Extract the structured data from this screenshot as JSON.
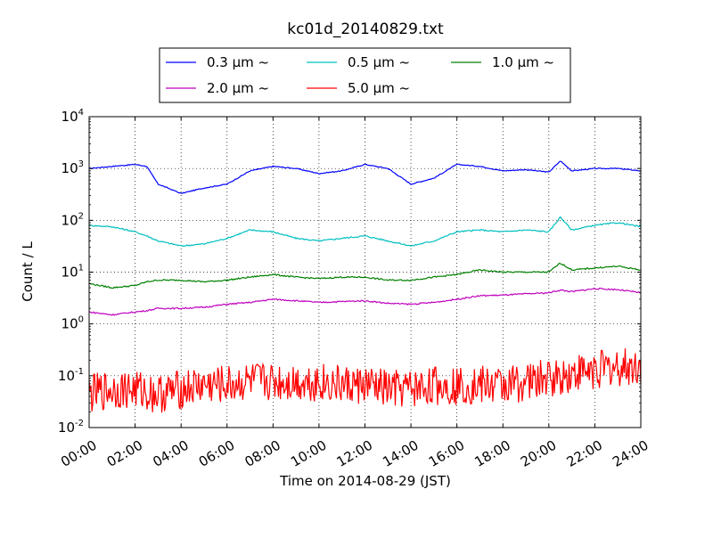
{
  "chart_data": {
    "type": "line",
    "title": "kc01d_20140829.txt",
    "xlabel": "Time on 2014-08-29 (JST)",
    "ylabel": "Count / L",
    "yscale": "log",
    "ylim": [
      0.01,
      10000
    ],
    "xlim": [
      "00:00",
      "24:00"
    ],
    "x_tick_labels": [
      "00:00",
      "02:00",
      "04:00",
      "06:00",
      "08:00",
      "10:00",
      "12:00",
      "14:00",
      "16:00",
      "18:00",
      "20:00",
      "22:00",
      "24:00"
    ],
    "y_tick_labels": [
      {
        "base": "10",
        "exp": "-2"
      },
      {
        "base": "10",
        "exp": "-1"
      },
      {
        "base": "10",
        "exp": "0"
      },
      {
        "base": "10",
        "exp": "1"
      },
      {
        "base": "10",
        "exp": "2"
      },
      {
        "base": "10",
        "exp": "3"
      },
      {
        "base": "10",
        "exp": "4"
      }
    ],
    "grid": true,
    "legend_position": "top-center",
    "x_hours": [
      0,
      1,
      2,
      2.5,
      3,
      4,
      5,
      6,
      7,
      8,
      9,
      10,
      11,
      12,
      13,
      14,
      15,
      16,
      17,
      18,
      19,
      20,
      20.5,
      21,
      22,
      23,
      24
    ],
    "series": [
      {
        "name": "0.3 μm ~",
        "color": "#0000ff",
        "noise": 0.02,
        "values": [
          1000,
          1100,
          1200,
          1100,
          500,
          330,
          420,
          500,
          900,
          1100,
          1000,
          800,
          900,
          1200,
          1000,
          500,
          650,
          1200,
          1100,
          900,
          950,
          850,
          1400,
          900,
          1000,
          1000,
          900
        ]
      },
      {
        "name": "0.5 μm ~",
        "color": "#00bfbf",
        "noise": 0.03,
        "values": [
          80,
          75,
          60,
          50,
          40,
          32,
          35,
          45,
          65,
          60,
          45,
          40,
          45,
          50,
          40,
          32,
          40,
          60,
          65,
          60,
          65,
          60,
          115,
          65,
          80,
          90,
          75
        ]
      },
      {
        "name": "1.0 μm ~",
        "color": "#008000",
        "noise": 0.03,
        "values": [
          6,
          5,
          5.5,
          6.5,
          7,
          7,
          6.5,
          7,
          8,
          9,
          8,
          7.5,
          8,
          8,
          7,
          7,
          8,
          9,
          11,
          10,
          10,
          10,
          15,
          11,
          12,
          13,
          11
        ]
      },
      {
        "name": "2.0 μm ~",
        "color": "#bf00bf",
        "noise": 0.03,
        "values": [
          1.7,
          1.5,
          1.7,
          1.8,
          2,
          2,
          2.1,
          2.4,
          2.6,
          3,
          2.8,
          2.6,
          2.7,
          2.8,
          2.5,
          2.4,
          2.6,
          3,
          3.5,
          3.6,
          3.8,
          4,
          4.5,
          4.2,
          4.8,
          4.6,
          4
        ]
      },
      {
        "name": "5.0 μm ~",
        "color": "#ff0000",
        "noise": 0.4,
        "values": [
          0.04,
          0.05,
          0.05,
          0.045,
          0.04,
          0.05,
          0.06,
          0.06,
          0.07,
          0.07,
          0.07,
          0.07,
          0.06,
          0.06,
          0.05,
          0.05,
          0.06,
          0.06,
          0.06,
          0.06,
          0.07,
          0.08,
          0.09,
          0.1,
          0.12,
          0.13,
          0.14
        ]
      }
    ]
  }
}
